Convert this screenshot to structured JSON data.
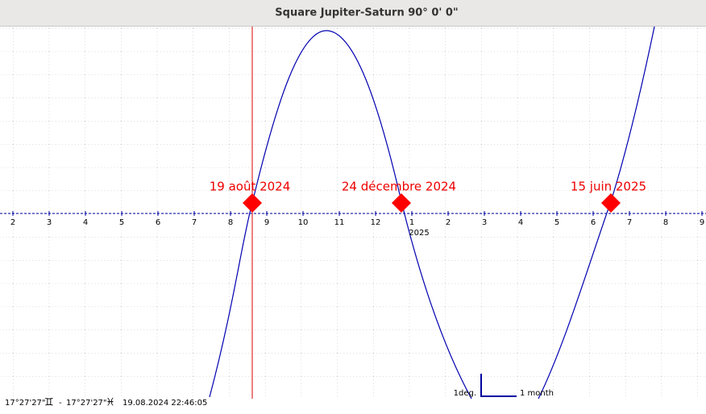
{
  "window": {
    "title": "Square Jupiter-Saturn  90° 0' 0\""
  },
  "axis": {
    "labels": [
      "2",
      "3",
      "4",
      "5",
      "6",
      "7",
      "8",
      "9",
      "10",
      "11",
      "12",
      "1",
      "2",
      "3",
      "4",
      "5",
      "6",
      "7",
      "8",
      "9"
    ],
    "year_label": "2025"
  },
  "events": [
    "19 août 2024",
    "24 décembre 2024",
    "15 juin 2025"
  ],
  "scale": {
    "vertical": "1deg.",
    "horizontal": "1 month"
  },
  "status": {
    "position_1": "17°27'27\"",
    "sign_1": "♊",
    "separator": "-",
    "position_2": "17°27'27\"",
    "sign_2": "♓",
    "datetime": "19.08.2024 22:46:05"
  }
}
